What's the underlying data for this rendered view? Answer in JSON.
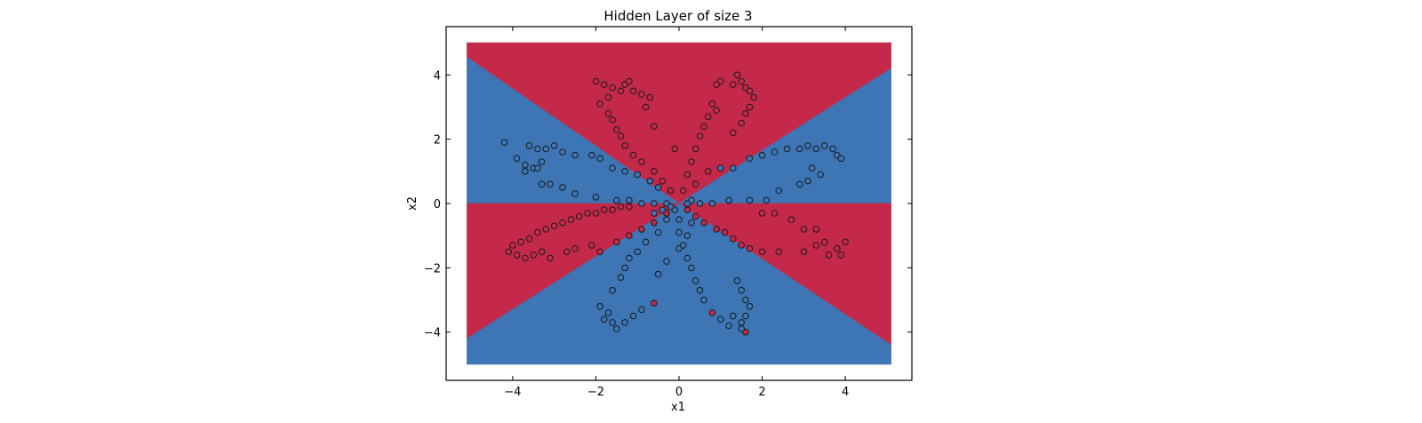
{
  "chart_data": {
    "type": "scatter",
    "title": "Hidden Layer of size 3",
    "xlabel": "x1",
    "ylabel": "x2",
    "xlim": [
      -5.6,
      5.6
    ],
    "ylim": [
      -5.5,
      5.5
    ],
    "xticks": [
      -4,
      -2,
      0,
      2,
      4
    ],
    "yticks": [
      -4,
      -2,
      0,
      2,
      4
    ],
    "x_tick_labels": [
      "−4",
      "−2",
      "0",
      "2",
      "4"
    ],
    "y_tick_labels": [
      "−4",
      "−2",
      "0",
      "2",
      "4"
    ],
    "grid": false,
    "legend": "none",
    "colors": {
      "red": "#c4294a",
      "blue": "#3d75b5",
      "edge": "#1a1a1a",
      "frame": "#000000"
    },
    "decision_regions": {
      "extent": {
        "x": [
          -5.1,
          5.1
        ],
        "y": [
          -5.0,
          5.0
        ]
      },
      "regions": [
        {
          "class": "red",
          "polygon": [
            [
              -5.1,
              5.0
            ],
            [
              5.1,
              5.0
            ],
            [
              5.1,
              4.2
            ],
            [
              0.0,
              0.0
            ],
            [
              -5.1,
              4.55
            ]
          ]
        },
        {
          "class": "blue",
          "polygon": [
            [
              -5.1,
              4.55
            ],
            [
              0.0,
              0.0
            ],
            [
              -5.1,
              0.0
            ]
          ]
        },
        {
          "class": "blue",
          "polygon": [
            [
              0.0,
              0.0
            ],
            [
              5.1,
              4.2
            ],
            [
              5.1,
              0.0
            ]
          ]
        },
        {
          "class": "red",
          "polygon": [
            [
              -5.1,
              0.0
            ],
            [
              0.0,
              0.0
            ],
            [
              -5.1,
              -4.2
            ]
          ]
        },
        {
          "class": "red",
          "polygon": [
            [
              0.0,
              0.0
            ],
            [
              5.1,
              0.0
            ],
            [
              5.1,
              -4.4
            ]
          ]
        },
        {
          "class": "blue",
          "polygon": [
            [
              -5.1,
              -4.2
            ],
            [
              0.0,
              0.0
            ],
            [
              5.1,
              -4.4
            ],
            [
              5.1,
              -5.0
            ],
            [
              -5.1,
              -5.0
            ]
          ]
        }
      ]
    },
    "series": [
      {
        "class": "red",
        "points": [
          [
            -2.0,
            3.8
          ],
          [
            -1.8,
            3.7
          ],
          [
            -1.6,
            3.6
          ],
          [
            -1.4,
            3.5
          ],
          [
            -1.3,
            3.7
          ],
          [
            -1.2,
            3.8
          ],
          [
            -1.1,
            3.5
          ],
          [
            -0.9,
            3.4
          ],
          [
            -0.7,
            3.3
          ],
          [
            -1.7,
            3.3
          ],
          [
            -1.9,
            3.1
          ],
          [
            -1.7,
            2.8
          ],
          [
            -1.6,
            2.6
          ],
          [
            -1.5,
            2.3
          ],
          [
            -1.4,
            2.1
          ],
          [
            -1.3,
            1.8
          ],
          [
            -1.1,
            1.5
          ],
          [
            -0.9,
            1.3
          ],
          [
            -0.6,
            1.0
          ],
          [
            -0.4,
            0.7
          ],
          [
            -0.2,
            0.4
          ],
          [
            -0.8,
            3.0
          ],
          [
            -0.6,
            2.4
          ],
          [
            -0.1,
            1.7
          ],
          [
            1.4,
            4.0
          ],
          [
            1.5,
            3.8
          ],
          [
            1.6,
            3.6
          ],
          [
            1.7,
            3.5
          ],
          [
            1.8,
            3.3
          ],
          [
            1.3,
            3.7
          ],
          [
            1.0,
            3.8
          ],
          [
            0.9,
            3.7
          ],
          [
            1.7,
            3.0
          ],
          [
            1.6,
            2.8
          ],
          [
            1.5,
            2.5
          ],
          [
            1.3,
            2.2
          ],
          [
            0.9,
            2.9
          ],
          [
            0.8,
            3.1
          ],
          [
            0.7,
            2.7
          ],
          [
            0.6,
            2.4
          ],
          [
            0.5,
            2.1
          ],
          [
            0.4,
            1.7
          ],
          [
            0.3,
            1.3
          ],
          [
            0.2,
            0.9
          ],
          [
            0.1,
            0.4
          ],
          [
            0.7,
            1.0
          ],
          [
            0.4,
            0.6
          ],
          [
            -4.1,
            -1.5
          ],
          [
            -3.9,
            -1.6
          ],
          [
            -3.7,
            -1.7
          ],
          [
            -3.5,
            -1.6
          ],
          [
            -3.3,
            -1.5
          ],
          [
            -4.0,
            -1.3
          ],
          [
            -3.8,
            -1.2
          ],
          [
            -3.6,
            -1.1
          ],
          [
            -3.4,
            -0.9
          ],
          [
            -3.2,
            -0.8
          ],
          [
            -3.0,
            -0.7
          ],
          [
            -2.8,
            -0.6
          ],
          [
            -2.6,
            -0.5
          ],
          [
            -2.4,
            -0.4
          ],
          [
            -2.2,
            -0.3
          ],
          [
            -2.0,
            -0.3
          ],
          [
            -1.8,
            -0.2
          ],
          [
            -1.6,
            -0.2
          ],
          [
            -1.4,
            -0.1
          ],
          [
            -1.2,
            -0.1
          ],
          [
            -2.7,
            -1.5
          ],
          [
            -2.5,
            -1.4
          ],
          [
            -2.1,
            -1.3
          ],
          [
            -1.9,
            -1.5
          ],
          [
            -1.5,
            -1.2
          ],
          [
            -1.2,
            -1.0
          ],
          [
            -0.9,
            -0.8
          ],
          [
            -0.6,
            -0.6
          ],
          [
            -0.3,
            -0.3
          ],
          [
            -3.1,
            -1.7
          ],
          [
            3.0,
            -1.5
          ],
          [
            3.3,
            -1.3
          ],
          [
            3.5,
            -1.2
          ],
          [
            3.6,
            -1.6
          ],
          [
            3.8,
            -1.4
          ],
          [
            3.9,
            -1.6
          ],
          [
            4.0,
            -1.2
          ],
          [
            3.3,
            -0.8
          ],
          [
            3.0,
            -0.8
          ],
          [
            2.7,
            -0.5
          ],
          [
            2.3,
            -0.3
          ],
          [
            2.0,
            -0.3
          ],
          [
            2.4,
            -1.5
          ],
          [
            2.0,
            -1.5
          ],
          [
            1.7,
            -1.4
          ],
          [
            1.5,
            -1.3
          ],
          [
            1.3,
            -1.1
          ],
          [
            1.1,
            -0.9
          ],
          [
            0.9,
            -0.8
          ],
          [
            0.6,
            -0.6
          ],
          [
            0.4,
            -0.4
          ],
          [
            0.2,
            -0.2
          ],
          [
            -0.6,
            -3.1
          ],
          [
            0.8,
            -3.4
          ],
          [
            1.6,
            -4.0
          ]
        ]
      },
      {
        "class": "blue",
        "points": [
          [
            -4.2,
            1.9
          ],
          [
            -3.9,
            1.4
          ],
          [
            -3.7,
            1.2
          ],
          [
            -3.5,
            1.1
          ],
          [
            -3.3,
            1.3
          ],
          [
            -3.6,
            1.8
          ],
          [
            -3.4,
            1.7
          ],
          [
            -3.2,
            1.7
          ],
          [
            -3.0,
            1.8
          ],
          [
            -2.8,
            1.6
          ],
          [
            -2.5,
            1.5
          ],
          [
            -2.1,
            1.5
          ],
          [
            -1.9,
            1.4
          ],
          [
            -1.6,
            1.1
          ],
          [
            -1.3,
            1.0
          ],
          [
            -1.0,
            0.9
          ],
          [
            -0.7,
            0.7
          ],
          [
            -0.5,
            0.5
          ],
          [
            -3.7,
            1.0
          ],
          [
            -3.4,
            1.1
          ],
          [
            -3.3,
            0.6
          ],
          [
            -3.1,
            0.6
          ],
          [
            -2.8,
            0.5
          ],
          [
            -2.5,
            0.3
          ],
          [
            -2.0,
            0.2
          ],
          [
            -1.5,
            0.1
          ],
          [
            -1.2,
            0.1
          ],
          [
            -0.9,
            0.0
          ],
          [
            -0.6,
            0.0
          ],
          [
            -0.3,
            0.0
          ],
          [
            1.0,
            1.1
          ],
          [
            1.3,
            1.1
          ],
          [
            1.7,
            1.4
          ],
          [
            2.0,
            1.5
          ],
          [
            2.3,
            1.6
          ],
          [
            2.6,
            1.7
          ],
          [
            2.9,
            1.7
          ],
          [
            3.1,
            1.8
          ],
          [
            3.3,
            1.7
          ],
          [
            3.5,
            1.8
          ],
          [
            3.7,
            1.7
          ],
          [
            3.8,
            1.5
          ],
          [
            3.9,
            1.4
          ],
          [
            3.2,
            1.1
          ],
          [
            3.4,
            0.9
          ],
          [
            3.1,
            0.7
          ],
          [
            2.9,
            0.6
          ],
          [
            2.4,
            0.4
          ],
          [
            2.1,
            0.1
          ],
          [
            1.7,
            0.1
          ],
          [
            1.2,
            0.1
          ],
          [
            0.8,
            0.0
          ],
          [
            0.5,
            0.0
          ],
          [
            0.2,
            0.0
          ],
          [
            -1.9,
            -3.2
          ],
          [
            -1.7,
            -3.4
          ],
          [
            -1.6,
            -3.7
          ],
          [
            -1.5,
            -3.9
          ],
          [
            -1.3,
            -3.7
          ],
          [
            -1.1,
            -3.5
          ],
          [
            -0.9,
            -3.3
          ],
          [
            -1.8,
            -3.6
          ],
          [
            -1.6,
            -2.7
          ],
          [
            -1.4,
            -2.3
          ],
          [
            -1.3,
            -2.0
          ],
          [
            -1.2,
            -1.7
          ],
          [
            -1.0,
            -1.5
          ],
          [
            -0.8,
            -1.2
          ],
          [
            -0.5,
            -0.9
          ],
          [
            -0.3,
            -0.5
          ],
          [
            -0.1,
            -0.2
          ],
          [
            -0.5,
            -2.2
          ],
          [
            -0.3,
            -1.8
          ],
          [
            0.0,
            -1.4
          ],
          [
            0.2,
            -1.0
          ],
          [
            0.3,
            -0.6
          ],
          [
            1.0,
            -3.6
          ],
          [
            1.3,
            -3.5
          ],
          [
            1.5,
            -3.7
          ],
          [
            1.6,
            -3.5
          ],
          [
            1.7,
            -3.2
          ],
          [
            1.6,
            -3.0
          ],
          [
            1.5,
            -2.7
          ],
          [
            1.4,
            -2.4
          ],
          [
            1.2,
            -3.8
          ],
          [
            1.5,
            -3.9
          ],
          [
            0.6,
            -3.0
          ],
          [
            0.5,
            -2.7
          ],
          [
            0.4,
            -2.4
          ],
          [
            0.3,
            -2.0
          ],
          [
            0.2,
            -1.7
          ],
          [
            0.1,
            -1.3
          ],
          [
            0.0,
            -0.9
          ],
          [
            0.0,
            -0.5
          ],
          [
            -0.6,
            -0.3
          ],
          [
            -0.4,
            -0.2
          ],
          [
            -0.2,
            -0.1
          ],
          [
            0.3,
            0.1
          ]
        ]
      }
    ]
  }
}
